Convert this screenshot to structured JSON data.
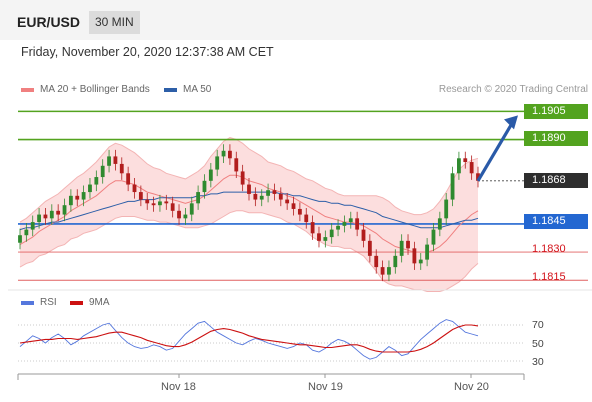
{
  "header": {
    "symbol": "EUR/USD",
    "timeframe": "30 MIN",
    "datetime": "Friday, November 20, 2020 12:37:38 AM CET"
  },
  "legend": {
    "ma20_label": "MA 20 + Bollinger Bands",
    "ma20_color": "#f08080",
    "ma50_label": "MA 50",
    "ma50_color": "#2d5fa8"
  },
  "credit": "Research © 2020 Trading Central",
  "levels": {
    "resistance_2": "1.1905",
    "resistance_1": "1.1890",
    "current": "1.1868",
    "pivot": "1.1845",
    "support_1": "1.1830",
    "support_2": "1.1815"
  },
  "rsi_legend": {
    "rsi_label": "RSI",
    "rsi_color": "#5577dd",
    "ma_label": "9MA",
    "ma_color": "#cc1111"
  },
  "rsi_ticks": [
    "70",
    "50",
    "30"
  ],
  "dates": [
    "Nov 18",
    "Nov 19",
    "Nov 20"
  ],
  "colors": {
    "resistance_line": "#53a31f",
    "pivot_line": "#2367d1",
    "support_line": "#e06060",
    "bollinger_fill": "#fbd8d8",
    "candle_up": "#2f8a2f",
    "candle_down": "#b11d1d",
    "arrow": "#2a5aa8"
  },
  "chart_data": {
    "type": "candlestick",
    "price_ylim": [
      1.1813,
      1.191
    ],
    "rsi_ylim": [
      20,
      80
    ],
    "x_labels": [
      "Nov 18",
      "Nov 19",
      "Nov 20"
    ],
    "price": [
      1.1839,
      1.1842,
      1.1846,
      1.185,
      1.1848,
      1.1852,
      1.185,
      1.1855,
      1.186,
      1.1858,
      1.1862,
      1.1866,
      1.187,
      1.1876,
      1.1881,
      1.1877,
      1.1872,
      1.1866,
      1.1862,
      1.1858,
      1.1856,
      1.1855,
      1.1857,
      1.1856,
      1.1852,
      1.1848,
      1.185,
      1.1856,
      1.1862,
      1.1868,
      1.1874,
      1.1881,
      1.1884,
      1.188,
      1.1873,
      1.1866,
      1.1861,
      1.1858,
      1.186,
      1.1863,
      1.1861,
      1.1858,
      1.1856,
      1.1853,
      1.185,
      1.1846,
      1.184,
      1.1836,
      1.1838,
      1.1842,
      1.1844,
      1.1846,
      1.1848,
      1.1842,
      1.1836,
      1.1828,
      1.1822,
      1.1818,
      1.1822,
      1.1828,
      1.1836,
      1.1832,
      1.1824,
      1.1826,
      1.1834,
      1.1842,
      1.1848,
      1.1858,
      1.1872,
      1.188,
      1.1878,
      1.1872,
      1.1868
    ],
    "ma20": [
      1.1834,
      1.1836,
      1.1838,
      1.1841,
      1.1843,
      1.1845,
      1.1847,
      1.1849,
      1.1852,
      1.1854,
      1.1856,
      1.1858,
      1.186,
      1.1863,
      1.1866,
      1.1868,
      1.1868,
      1.1867,
      1.1866,
      1.1864,
      1.1862,
      1.1861,
      1.186,
      1.1859,
      1.1858,
      1.1857,
      1.1856,
      1.1857,
      1.1858,
      1.186,
      1.1863,
      1.1866,
      1.1869,
      1.1871,
      1.1871,
      1.187,
      1.1868,
      1.1867,
      1.1866,
      1.1864,
      1.1863,
      1.1862,
      1.186,
      1.1859,
      1.1857,
      1.1855,
      1.1853,
      1.1851,
      1.1849,
      1.1848,
      1.1847,
      1.1846,
      1.1846,
      1.1845,
      1.1844,
      1.1842,
      1.184,
      1.1837,
      1.1835,
      1.1833,
      1.1832,
      1.1831,
      1.183,
      1.183,
      1.183,
      1.1831,
      1.1833,
      1.1836,
      1.184,
      1.1844,
      1.1847,
      1.185,
      1.1852
    ],
    "ma50": [
      1.1842,
      1.1843,
      1.1843,
      1.1844,
      1.1845,
      1.1846,
      1.1846,
      1.1847,
      1.1848,
      1.1849,
      1.185,
      1.1851,
      1.1852,
      1.1853,
      1.1854,
      1.1855,
      1.1856,
      1.1857,
      1.1857,
      1.1858,
      1.1858,
      1.1858,
      1.1859,
      1.1859,
      1.1859,
      1.1859,
      1.1859,
      1.1859,
      1.186,
      1.186,
      1.1861,
      1.1861,
      1.1862,
      1.1862,
      1.1862,
      1.1862,
      1.1862,
      1.1862,
      1.1862,
      1.1862,
      1.1862,
      1.1861,
      1.1861,
      1.186,
      1.186,
      1.1859,
      1.1858,
      1.1857,
      1.1857,
      1.1856,
      1.1856,
      1.1855,
      1.1855,
      1.1854,
      1.1853,
      1.1852,
      1.1851,
      1.1849,
      1.1848,
      1.1847,
      1.1846,
      1.1845,
      1.1844,
      1.1843,
      1.1843,
      1.1843,
      1.1843,
      1.1844,
      1.1845,
      1.1846,
      1.1847,
      1.1847,
      1.1848
    ],
    "band_width": [
      0.0012,
      0.0012,
      0.0013,
      0.0013,
      0.0014,
      0.0014,
      0.0014,
      0.0015,
      0.0015,
      0.0016,
      0.0016,
      0.0017,
      0.0018,
      0.0019,
      0.002,
      0.002,
      0.0019,
      0.0018,
      0.0017,
      0.0016,
      0.0015,
      0.0014,
      0.0014,
      0.0013,
      0.0013,
      0.0013,
      0.0013,
      0.0014,
      0.0015,
      0.0016,
      0.0018,
      0.0019,
      0.002,
      0.002,
      0.0019,
      0.0018,
      0.0017,
      0.0016,
      0.0015,
      0.0014,
      0.0014,
      0.0014,
      0.0014,
      0.0014,
      0.0014,
      0.0014,
      0.0015,
      0.0015,
      0.0015,
      0.0015,
      0.0014,
      0.0014,
      0.0014,
      0.0015,
      0.0016,
      0.0018,
      0.002,
      0.0022,
      0.0022,
      0.0021,
      0.002,
      0.002,
      0.002,
      0.002,
      0.0021,
      0.0022,
      0.0024,
      0.0026,
      0.0028,
      0.003,
      0.003,
      0.0029,
      0.0028
    ],
    "rsi": [
      46,
      52,
      58,
      55,
      50,
      56,
      60,
      55,
      48,
      52,
      58,
      62,
      66,
      70,
      72,
      64,
      56,
      50,
      46,
      44,
      45,
      48,
      46,
      42,
      44,
      52,
      60,
      66,
      72,
      74,
      68,
      62,
      58,
      54,
      50,
      48,
      52,
      55,
      53,
      50,
      48,
      46,
      44,
      46,
      50,
      48,
      42,
      40,
      44,
      50,
      54,
      52,
      48,
      42,
      36,
      32,
      34,
      40,
      46,
      42,
      36,
      38,
      46,
      54,
      60,
      66,
      72,
      76,
      74,
      68,
      62,
      60,
      58
    ],
    "rsi_ma": [
      50,
      51,
      52,
      53,
      54,
      54,
      55,
      55,
      55,
      54,
      55,
      56,
      57,
      59,
      61,
      62,
      62,
      60,
      58,
      56,
      53,
      51,
      49,
      47,
      46,
      46,
      48,
      51,
      55,
      59,
      63,
      65,
      66,
      65,
      63,
      61,
      58,
      56,
      54,
      53,
      52,
      51,
      50,
      49,
      48,
      48,
      47,
      46,
      45,
      45,
      46,
      47,
      48,
      48,
      46,
      43,
      41,
      40,
      40,
      40,
      40,
      40,
      41,
      43,
      46,
      50,
      55,
      60,
      65,
      68,
      70,
      70,
      69
    ],
    "forecast_target": 1.1905
  }
}
